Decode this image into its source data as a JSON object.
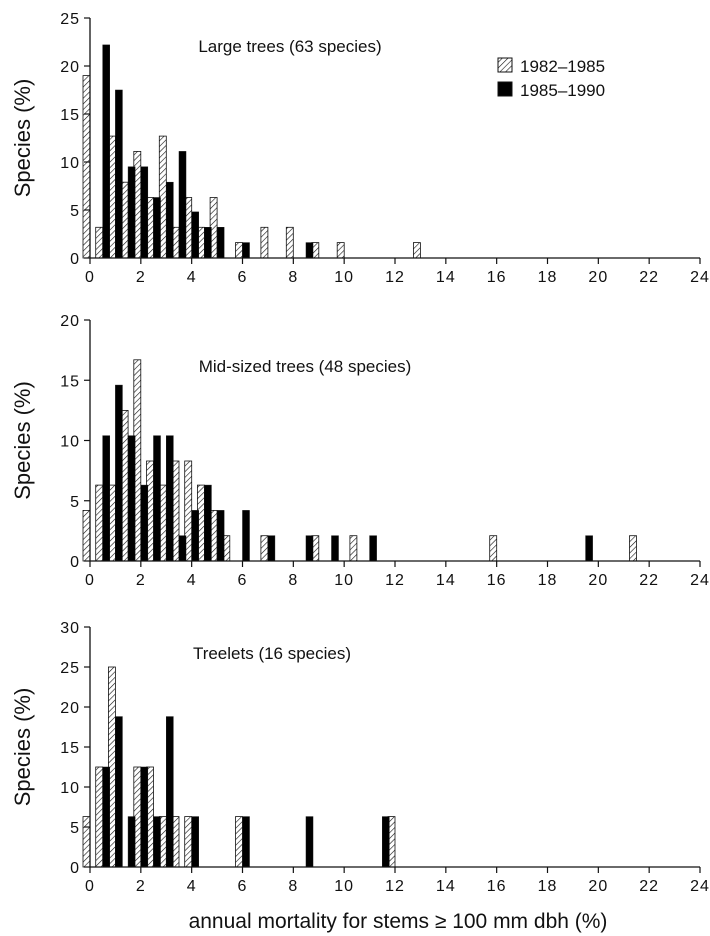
{
  "chart_data": [
    {
      "type": "bar",
      "title": "Large trees (63 species)",
      "ylabel": "Species (%)",
      "xlabel": "",
      "xlim": [
        0,
        24
      ],
      "ylim": [
        0,
        25
      ],
      "xticks": [
        0,
        2,
        4,
        6,
        8,
        10,
        12,
        14,
        16,
        18,
        20,
        22,
        24
      ],
      "yticks": [
        0,
        5,
        10,
        15,
        20,
        25
      ],
      "grid": false,
      "legend": "top-right",
      "series": [
        {
          "name": "1982–1985",
          "pattern": "hatched",
          "x": [
            0,
            0.5,
            1,
            1.5,
            2,
            2.5,
            3,
            3.5,
            4,
            4.5,
            5,
            6,
            7,
            8,
            9,
            10,
            13
          ],
          "values": [
            19.0,
            3.2,
            12.7,
            7.9,
            11.1,
            6.3,
            12.7,
            3.2,
            6.3,
            3.2,
            6.3,
            1.6,
            3.2,
            3.2,
            1.6,
            1.6,
            1.6
          ]
        },
        {
          "name": "1985–1990",
          "pattern": "solid",
          "color": "#000000",
          "x": [
            0.5,
            1,
            1.5,
            2,
            2.5,
            3,
            3.5,
            4,
            4.5,
            5,
            6,
            8.5
          ],
          "values": [
            22.2,
            17.5,
            9.5,
            9.5,
            6.3,
            7.9,
            11.1,
            4.8,
            3.2,
            3.2,
            1.6,
            1.6
          ]
        }
      ]
    },
    {
      "type": "bar",
      "title": "Mid-sized trees (48 species)",
      "ylabel": "Species (%)",
      "xlabel": "",
      "xlim": [
        0,
        24
      ],
      "ylim": [
        0,
        20
      ],
      "xticks": [
        0,
        2,
        4,
        6,
        8,
        10,
        12,
        14,
        16,
        18,
        20,
        22,
        24
      ],
      "yticks": [
        0,
        5,
        10,
        15,
        20
      ],
      "grid": false,
      "legend": "none",
      "series": [
        {
          "name": "1982–1985",
          "pattern": "hatched",
          "x": [
            0,
            0.5,
            1,
            1.5,
            2,
            2.5,
            3,
            3.5,
            4,
            4.5,
            5,
            5.5,
            7,
            9,
            10.5,
            16,
            21.5
          ],
          "values": [
            4.2,
            6.3,
            6.3,
            12.5,
            16.7,
            8.3,
            6.3,
            8.3,
            8.3,
            6.3,
            4.2,
            2.1,
            2.1,
            2.1,
            2.1,
            2.1,
            2.1
          ]
        },
        {
          "name": "1985–1990",
          "pattern": "solid",
          "color": "#000000",
          "x": [
            0.5,
            1,
            1.5,
            2,
            2.5,
            3,
            3.5,
            4,
            4.5,
            5,
            6,
            7,
            8.5,
            9.5,
            11,
            19.5
          ],
          "values": [
            10.4,
            14.6,
            10.4,
            6.3,
            10.4,
            10.4,
            2.1,
            4.2,
            6.3,
            4.2,
            4.2,
            2.1,
            2.1,
            2.1,
            2.1,
            2.1
          ]
        }
      ]
    },
    {
      "type": "bar",
      "title": "Treelets (16 species)",
      "ylabel": "Species (%)",
      "xlabel": "annual mortality for stems ≥ 100 mm dbh (%)",
      "xlim": [
        0,
        24
      ],
      "ylim": [
        0,
        30
      ],
      "xticks": [
        0,
        2,
        4,
        6,
        8,
        10,
        12,
        14,
        16,
        18,
        20,
        22,
        24
      ],
      "yticks": [
        0,
        5,
        10,
        15,
        20,
        25,
        30
      ],
      "grid": false,
      "legend": "none",
      "series": [
        {
          "name": "1982–1985",
          "pattern": "hatched",
          "x": [
            0,
            0.5,
            1,
            2,
            2.5,
            3,
            3.5,
            4,
            6,
            12
          ],
          "values": [
            6.3,
            12.5,
            25.0,
            12.5,
            12.5,
            6.3,
            6.3,
            6.3,
            6.3,
            6.3
          ]
        },
        {
          "name": "1985–1990",
          "pattern": "solid",
          "color": "#000000",
          "x": [
            0.5,
            1,
            1.5,
            2,
            2.5,
            3,
            4,
            6,
            8.5,
            11.5
          ],
          "values": [
            12.5,
            18.8,
            6.3,
            12.5,
            6.3,
            18.8,
            6.3,
            6.3,
            6.3,
            6.3
          ]
        }
      ]
    }
  ]
}
